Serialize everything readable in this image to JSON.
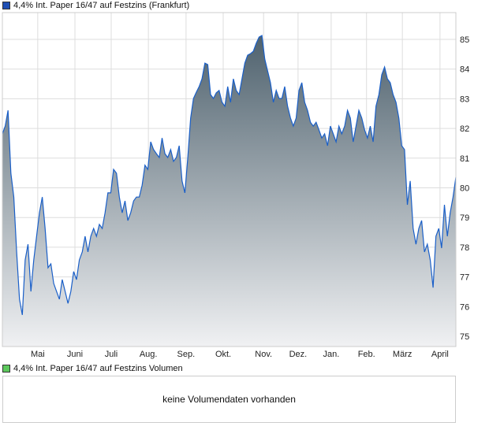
{
  "chart_data": {
    "type": "area",
    "title": "4,4% Int. Paper 16/47 auf Festzins (Frankfurt)",
    "legend": "top-left",
    "series_color": "#1a5fc8",
    "fill_top_color": "#4f626e",
    "fill_bottom_color": "#f0f1f3",
    "ylim": [
      74.4,
      86.0
    ],
    "yticks": [
      75,
      76,
      77,
      78,
      79,
      80,
      81,
      82,
      83,
      84,
      85
    ],
    "xtick_labels": [
      "Mai",
      "Juni",
      "Juli",
      "Aug.",
      "Sep.",
      "Okt.",
      "Nov.",
      "Dez.",
      "Jan.",
      "Feb.",
      "März",
      "April"
    ],
    "xtick_positions": [
      0.078,
      0.16,
      0.24,
      0.322,
      0.405,
      0.487,
      0.576,
      0.652,
      0.725,
      0.803,
      0.882,
      0.965
    ],
    "grid": true,
    "values": [
      81.82,
      82.08,
      82.61,
      80.49,
      79.69,
      77.84,
      76.25,
      75.72,
      77.57,
      78.1,
      76.51,
      77.57,
      78.37,
      79.16,
      79.69,
      78.63,
      77.31,
      77.44,
      76.78,
      76.51,
      76.25,
      76.91,
      76.51,
      76.11,
      76.51,
      77.18,
      76.91,
      77.57,
      77.84,
      78.37,
      77.84,
      78.37,
      78.63,
      78.37,
      78.77,
      78.63,
      79.16,
      79.83,
      79.83,
      80.62,
      80.49,
      79.69,
      79.16,
      79.56,
      78.9,
      79.16,
      79.56,
      79.69,
      79.69,
      80.09,
      80.76,
      80.62,
      81.55,
      81.29,
      81.15,
      81.02,
      81.68,
      81.15,
      81.02,
      81.29,
      80.89,
      81.02,
      81.42,
      80.23,
      79.83,
      81.02,
      82.35,
      83.01,
      83.22,
      83.41,
      83.67,
      84.2,
      84.15,
      83.14,
      83.01,
      83.2,
      83.28,
      82.88,
      82.75,
      83.41,
      82.88,
      83.67,
      83.28,
      83.14,
      83.67,
      84.2,
      84.47,
      84.52,
      84.6,
      84.87,
      85.08,
      85.13,
      84.34,
      83.94,
      83.54,
      82.88,
      83.28,
      83.01,
      83.01,
      83.41,
      82.75,
      82.35,
      82.08,
      82.35,
      83.28,
      83.54,
      82.88,
      82.61,
      82.21,
      82.08,
      82.21,
      81.95,
      81.68,
      81.82,
      81.42,
      82.08,
      81.82,
      81.55,
      82.08,
      81.82,
      82.08,
      82.61,
      82.35,
      81.55,
      82.08,
      82.61,
      82.35,
      81.95,
      81.68,
      82.08,
      81.55,
      82.75,
      83.14,
      83.81,
      84.07,
      83.67,
      83.54,
      83.14,
      82.88,
      82.35,
      81.42,
      81.29,
      79.43,
      80.23,
      78.63,
      78.1,
      78.63,
      78.9,
      77.84,
      78.1,
      77.57,
      76.64,
      78.37,
      78.63,
      77.97,
      79.43,
      78.37,
      79.16,
      79.69,
      80.36
    ]
  },
  "price_legend": {
    "label": "4,4% Int. Paper 16/47 auf Festzins (Frankfurt)",
    "color": "#1f4fb4"
  },
  "volume_legend": {
    "label": "4,4% Int. Paper 16/47 auf Festzins Volumen",
    "color": "#5cc85c"
  },
  "volume_panel": {
    "message": "keine Volumendaten vorhanden"
  }
}
